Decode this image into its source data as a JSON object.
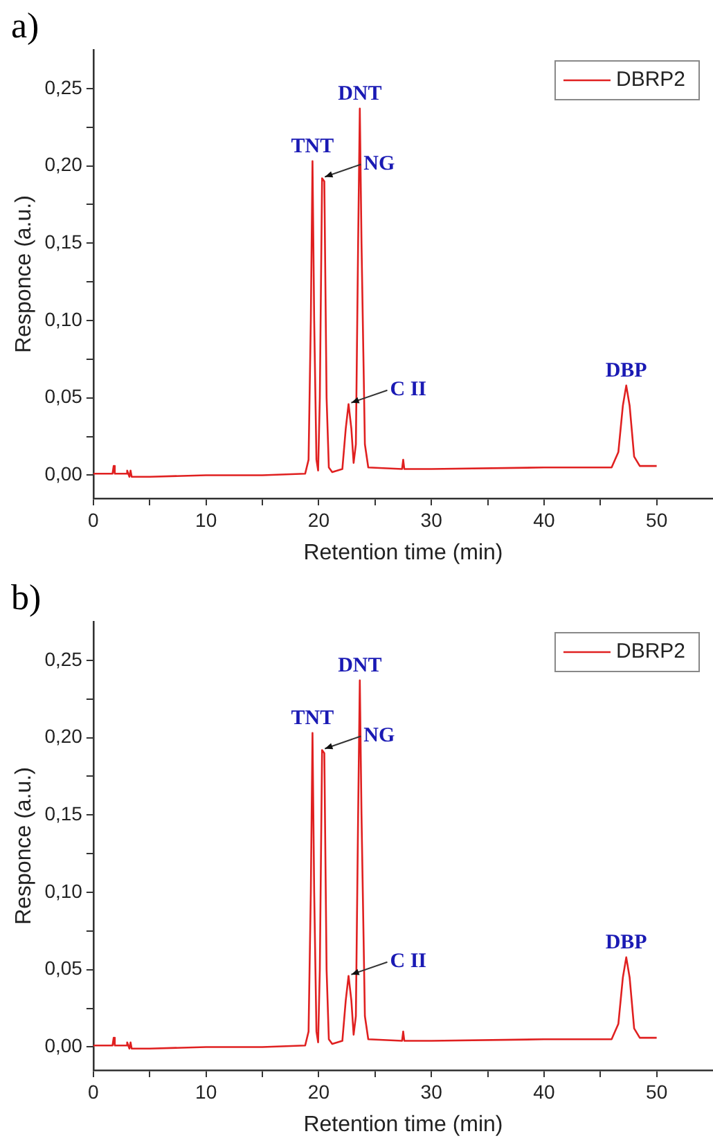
{
  "chart_data": [
    {
      "type": "line",
      "title": "a)",
      "xlabel": "Retention time (min)",
      "ylabel": "Responce (a.u.)",
      "xlim": [
        0,
        55
      ],
      "xticks": [
        0,
        {
          "value": 5,
          "label": null
        },
        10,
        {
          "value": 15,
          "label": null
        },
        20,
        {
          "value": 25,
          "label": null
        },
        30,
        {
          "value": 35,
          "label": null
        },
        40,
        {
          "value": 45,
          "label": null
        },
        50
      ],
      "ylim": [
        -0.015,
        0.275
      ],
      "yticks": [
        {
          "value": 0,
          "label": "0,00"
        },
        {
          "value": 0.025,
          "label": null
        },
        {
          "value": 0.05,
          "label": "0,05"
        },
        {
          "value": 0.075,
          "label": null
        },
        {
          "value": 0.1,
          "label": "0,10"
        },
        {
          "value": 0.125,
          "label": null
        },
        {
          "value": 0.15,
          "label": "0,15"
        },
        {
          "value": 0.175,
          "label": null
        },
        {
          "value": 0.2,
          "label": "0,20"
        },
        {
          "value": 0.225,
          "label": null
        },
        {
          "value": 0.25,
          "label": "0,25"
        }
      ],
      "grid": false,
      "legend": "top right",
      "marker": "none",
      "line_style": "solid",
      "series": [
        {
          "name": "DBRP2",
          "color": "#e02020",
          "x": [
            0,
            1.7,
            1.8,
            1.9,
            2.9,
            3.0,
            3.2,
            3.3,
            3.4,
            5,
            10,
            15,
            18.8,
            19.1,
            19.3,
            19.45,
            19.6,
            19.8,
            19.95,
            20.1,
            20.3,
            20.5,
            20.7,
            20.9,
            21.2,
            22.1,
            22.4,
            22.65,
            22.9,
            23.1,
            23.3,
            23.5,
            23.65,
            23.8,
            24.1,
            24.4,
            27.4,
            27.5,
            27.6,
            30,
            40,
            46,
            46.6,
            47.0,
            47.3,
            47.6,
            48.0,
            48.5,
            50
          ],
          "values": [
            0.001,
            0.001,
            0.006,
            0.001,
            0.001,
            0.003,
            -0.001,
            0.003,
            -0.001,
            -0.001,
            0,
            0,
            0.001,
            0.01,
            0.1,
            0.203,
            0.1,
            0.01,
            0.003,
            0.05,
            0.192,
            0.19,
            0.05,
            0.005,
            0.002,
            0.004,
            0.03,
            0.046,
            0.03,
            0.008,
            0.02,
            0.15,
            0.237,
            0.15,
            0.02,
            0.005,
            0.004,
            0.01,
            0.004,
            0.004,
            0.005,
            0.005,
            0.015,
            0.045,
            0.058,
            0.045,
            0.012,
            0.006,
            0.006
          ]
        }
      ],
      "annotations": [
        {
          "text": "TNT",
          "x": 19.45,
          "y": 0.203
        },
        {
          "text": "NG",
          "x": 20.3,
          "y": 0.192
        },
        {
          "text": "DNT",
          "x": 23.65,
          "y": 0.237
        },
        {
          "text": "C II",
          "x": 22.65,
          "y": 0.046
        },
        {
          "text": "DBP",
          "x": 47.3,
          "y": 0.058
        }
      ]
    },
    {
      "type": "line",
      "title": "b)",
      "xlabel": "Retention time (min)",
      "ylabel": "Responce (a.u.)",
      "xlim": [
        0,
        55
      ],
      "xticks": [
        0,
        {
          "value": 5,
          "label": null
        },
        10,
        {
          "value": 15,
          "label": null
        },
        20,
        {
          "value": 25,
          "label": null
        },
        30,
        {
          "value": 35,
          "label": null
        },
        40,
        {
          "value": 45,
          "label": null
        },
        50
      ],
      "ylim": [
        -0.015,
        0.275
      ],
      "yticks": [
        {
          "value": 0,
          "label": "0,00"
        },
        {
          "value": 0.025,
          "label": null
        },
        {
          "value": 0.05,
          "label": "0,05"
        },
        {
          "value": 0.075,
          "label": null
        },
        {
          "value": 0.1,
          "label": "0,10"
        },
        {
          "value": 0.125,
          "label": null
        },
        {
          "value": 0.15,
          "label": "0,15"
        },
        {
          "value": 0.175,
          "label": null
        },
        {
          "value": 0.2,
          "label": "0,20"
        },
        {
          "value": 0.225,
          "label": null
        },
        {
          "value": 0.25,
          "label": "0,25"
        }
      ],
      "grid": false,
      "legend": "top right",
      "marker": "none",
      "line_style": "solid",
      "series": [
        {
          "name": "DBRP2",
          "color": "#e02020",
          "x": [
            0,
            1.7,
            1.8,
            1.9,
            2.9,
            3.0,
            3.2,
            3.3,
            3.4,
            5,
            10,
            15,
            18.8,
            19.1,
            19.3,
            19.45,
            19.6,
            19.8,
            19.95,
            20.1,
            20.3,
            20.5,
            20.7,
            20.9,
            21.2,
            22.1,
            22.4,
            22.65,
            22.9,
            23.1,
            23.3,
            23.5,
            23.65,
            23.8,
            24.1,
            24.4,
            27.4,
            27.5,
            27.6,
            30,
            40,
            46,
            46.6,
            47.0,
            47.3,
            47.6,
            48.0,
            48.5,
            50
          ],
          "values": [
            0.001,
            0.001,
            0.006,
            0.001,
            0.001,
            0.003,
            -0.001,
            0.003,
            -0.001,
            -0.001,
            0,
            0,
            0.001,
            0.01,
            0.1,
            0.203,
            0.1,
            0.01,
            0.003,
            0.05,
            0.192,
            0.19,
            0.05,
            0.005,
            0.002,
            0.004,
            0.03,
            0.046,
            0.03,
            0.008,
            0.02,
            0.15,
            0.237,
            0.15,
            0.02,
            0.005,
            0.004,
            0.01,
            0.004,
            0.004,
            0.005,
            0.005,
            0.015,
            0.045,
            0.058,
            0.045,
            0.012,
            0.006,
            0.006
          ]
        }
      ],
      "annotations": [
        {
          "text": "TNT",
          "x": 19.45,
          "y": 0.203
        },
        {
          "text": "NG",
          "x": 20.3,
          "y": 0.192
        },
        {
          "text": "DNT",
          "x": 23.65,
          "y": 0.237
        },
        {
          "text": "C II",
          "x": 22.65,
          "y": 0.046
        },
        {
          "text": "DBP",
          "x": 47.3,
          "y": 0.058
        }
      ]
    }
  ]
}
